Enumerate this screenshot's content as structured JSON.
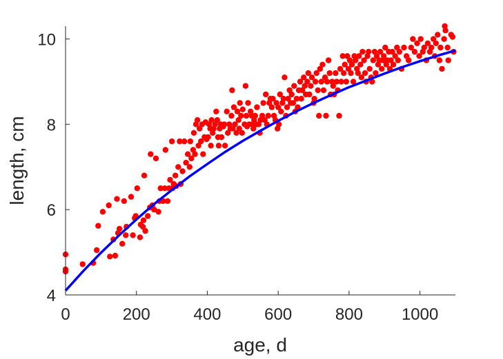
{
  "chart_data": {
    "type": "scatter",
    "xlabel": "age, d",
    "ylabel": "length, cm",
    "xlim": [
      0,
      1100
    ],
    "ylim": [
      4,
      10.3
    ],
    "xticks": [
      0,
      200,
      400,
      600,
      800,
      1000
    ],
    "yticks": [
      4,
      6,
      8,
      10
    ],
    "grid": false,
    "colors": {
      "points": "#ff0000",
      "fit": "#0000ff",
      "axes": "#262626"
    },
    "series": [
      {
        "type": "scatter",
        "points": [
          [
            0,
            4.95
          ],
          [
            0,
            4.6
          ],
          [
            0,
            4.55
          ],
          [
            48,
            4.72
          ],
          [
            78,
            4.75
          ],
          [
            88,
            5.05
          ],
          [
            92,
            5.62
          ],
          [
            105,
            5.95
          ],
          [
            122,
            6.1
          ],
          [
            125,
            4.9
          ],
          [
            135,
            5.3
          ],
          [
            140,
            4.92
          ],
          [
            145,
            6.25
          ],
          [
            148,
            5.45
          ],
          [
            152,
            5.55
          ],
          [
            160,
            5.2
          ],
          [
            165,
            6.2
          ],
          [
            170,
            5.4
          ],
          [
            172,
            5.6
          ],
          [
            185,
            6.3
          ],
          [
            190,
            5.4
          ],
          [
            195,
            5.8
          ],
          [
            198,
            5.85
          ],
          [
            202,
            6.5
          ],
          [
            210,
            5.35
          ],
          [
            212,
            5.65
          ],
          [
            218,
            5.6
          ],
          [
            220,
            5.75
          ],
          [
            222,
            6.8
          ],
          [
            225,
            5.5
          ],
          [
            232,
            5.85
          ],
          [
            238,
            6.05
          ],
          [
            240,
            7.3
          ],
          [
            245,
            6.1
          ],
          [
            250,
            6.0
          ],
          [
            255,
            7.2
          ],
          [
            262,
            5.95
          ],
          [
            265,
            6.2
          ],
          [
            268,
            6.5
          ],
          [
            275,
            6.2
          ],
          [
            280,
            6.5
          ],
          [
            282,
            7.4
          ],
          [
            288,
            6.2
          ],
          [
            292,
            6.5
          ],
          [
            295,
            6.7
          ],
          [
            300,
            7.6
          ],
          [
            302,
            6.5
          ],
          [
            305,
            6.6
          ],
          [
            310,
            6.8
          ],
          [
            312,
            6.55
          ],
          [
            318,
            7.0
          ],
          [
            322,
            7.6
          ],
          [
            325,
            6.6
          ],
          [
            330,
            6.9
          ],
          [
            335,
            7.6
          ],
          [
            340,
            7.1
          ],
          [
            345,
            7.3
          ],
          [
            350,
            7.0
          ],
          [
            352,
            7.6
          ],
          [
            355,
            7.2
          ],
          [
            360,
            7.4
          ],
          [
            362,
            7.8
          ],
          [
            365,
            7.3
          ],
          [
            368,
            8.0
          ],
          [
            372,
            8.1
          ],
          [
            375,
            7.5
          ],
          [
            378,
            7.9
          ],
          [
            382,
            7.6
          ],
          [
            385,
            8.0
          ],
          [
            388,
            7.3
          ],
          [
            392,
            7.7
          ],
          [
            395,
            8.05
          ],
          [
            398,
            7.65
          ],
          [
            402,
            7.7
          ],
          [
            405,
            8.0
          ],
          [
            408,
            7.9
          ],
          [
            410,
            7.5
          ],
          [
            412,
            8.1
          ],
          [
            415,
            7.8
          ],
          [
            418,
            7.9
          ],
          [
            422,
            8.0
          ],
          [
            425,
            8.3
          ],
          [
            428,
            8.1
          ],
          [
            430,
            7.7
          ],
          [
            432,
            7.5
          ],
          [
            435,
            7.9
          ],
          [
            438,
            8.0
          ],
          [
            440,
            7.7
          ],
          [
            445,
            7.95
          ],
          [
            448,
            8.0
          ],
          [
            450,
            7.5
          ],
          [
            455,
            8.3
          ],
          [
            458,
            7.8
          ],
          [
            462,
            8.0
          ],
          [
            465,
            7.9
          ],
          [
            468,
            8.2
          ],
          [
            470,
            8.8
          ],
          [
            472,
            7.9
          ],
          [
            475,
            8.4
          ],
          [
            478,
            8.0
          ],
          [
            482,
            7.8
          ],
          [
            485,
            8.3
          ],
          [
            488,
            8.1
          ],
          [
            490,
            7.9
          ],
          [
            492,
            8.5
          ],
          [
            495,
            8.2
          ],
          [
            498,
            7.8
          ],
          [
            500,
            8.35
          ],
          [
            505,
            8.0
          ],
          [
            508,
            8.9
          ],
          [
            510,
            8.2
          ],
          [
            512,
            7.95
          ],
          [
            515,
            8.5
          ],
          [
            518,
            8.0
          ],
          [
            522,
            8.3
          ],
          [
            525,
            8.2
          ],
          [
            528,
            8.0
          ],
          [
            530,
            7.9
          ],
          [
            532,
            8.1
          ],
          [
            535,
            8.2
          ],
          [
            538,
            8.0
          ],
          [
            540,
            8.4
          ],
          [
            545,
            8.0
          ],
          [
            548,
            7.8
          ],
          [
            550,
            8.1
          ],
          [
            555,
            8.2
          ],
          [
            558,
            8.5
          ],
          [
            562,
            8.1
          ],
          [
            565,
            8.7
          ],
          [
            568,
            8.0
          ],
          [
            572,
            8.2
          ],
          [
            575,
            8.5
          ],
          [
            578,
            8.6
          ],
          [
            582,
            8.4
          ],
          [
            585,
            8.6
          ],
          [
            588,
            8.2
          ],
          [
            592,
            8.1
          ],
          [
            595,
            8.5
          ],
          [
            598,
            7.9
          ],
          [
            600,
            8.4
          ],
          [
            602,
            8.0
          ],
          [
            605,
            8.7
          ],
          [
            608,
            8.3
          ],
          [
            612,
            8.5
          ],
          [
            615,
            8.6
          ],
          [
            618,
            9.1
          ],
          [
            622,
            8.2
          ],
          [
            625,
            8.4
          ],
          [
            628,
            8.6
          ],
          [
            632,
            8.8
          ],
          [
            635,
            8.5
          ],
          [
            638,
            8.7
          ],
          [
            642,
            8.5
          ],
          [
            645,
            8.9
          ],
          [
            648,
            8.3
          ],
          [
            652,
            8.6
          ],
          [
            655,
            8.4
          ],
          [
            658,
            8.8
          ],
          [
            662,
            9.0
          ],
          [
            665,
            8.6
          ],
          [
            668,
            8.8
          ],
          [
            672,
            9.1
          ],
          [
            675,
            8.9
          ],
          [
            678,
            8.7
          ],
          [
            682,
            9.0
          ],
          [
            685,
            9.2
          ],
          [
            688,
            8.7
          ],
          [
            692,
            8.9
          ],
          [
            695,
            9.1
          ],
          [
            700,
            8.5
          ],
          [
            702,
            8.6
          ],
          [
            705,
            9.0
          ],
          [
            708,
            9.2
          ],
          [
            712,
            8.8
          ],
          [
            715,
            8.2
          ],
          [
            718,
            9.3
          ],
          [
            722,
            9.0
          ],
          [
            725,
            9.4
          ],
          [
            728,
            8.8
          ],
          [
            732,
            9.1
          ],
          [
            735,
            8.2
          ],
          [
            738,
            9.0
          ],
          [
            742,
            9.5
          ],
          [
            745,
            9.2
          ],
          [
            748,
            8.7
          ],
          [
            752,
            9.0
          ],
          [
            755,
            8.9
          ],
          [
            758,
            8.7
          ],
          [
            762,
            9.2
          ],
          [
            765,
            9.0
          ],
          [
            768,
            8.8
          ],
          [
            772,
            8.2
          ],
          [
            775,
            9.3
          ],
          [
            778,
            9.0
          ],
          [
            782,
            9.6
          ],
          [
            785,
            9.2
          ],
          [
            788,
            9.4
          ],
          [
            792,
            9.0
          ],
          [
            795,
            9.6
          ],
          [
            798,
            9.3
          ],
          [
            802,
            9.5
          ],
          [
            805,
            9.2
          ],
          [
            808,
            9.4
          ],
          [
            812,
            9.0
          ],
          [
            815,
            9.6
          ],
          [
            818,
            9.5
          ],
          [
            822,
            9.3
          ],
          [
            825,
            9.2
          ],
          [
            828,
            9.6
          ],
          [
            832,
            9.4
          ],
          [
            835,
            9.1
          ],
          [
            838,
            9.7
          ],
          [
            842,
            9.5
          ],
          [
            845,
            9.2
          ],
          [
            848,
            9.0
          ],
          [
            852,
            9.6
          ],
          [
            855,
            9.7
          ],
          [
            858,
            9.3
          ],
          [
            862,
            9.1
          ],
          [
            865,
            9.0
          ],
          [
            868,
            9.5
          ],
          [
            872,
            9.7
          ],
          [
            875,
            9.2
          ],
          [
            878,
            9.6
          ],
          [
            882,
            9.4
          ],
          [
            885,
            9.5
          ],
          [
            888,
            9.7
          ],
          [
            892,
            9.3
          ],
          [
            895,
            9.5
          ],
          [
            898,
            9.6
          ],
          [
            902,
            9.8
          ],
          [
            905,
            9.4
          ],
          [
            908,
            9.5
          ],
          [
            912,
            9.7
          ],
          [
            915,
            9.3
          ],
          [
            918,
            9.5
          ],
          [
            922,
            9.7
          ],
          [
            925,
            9.4
          ],
          [
            930,
            9.6
          ],
          [
            935,
            9.8
          ],
          [
            938,
            9.5
          ],
          [
            942,
            9.7
          ],
          [
            948,
            9.3
          ],
          [
            955,
            9.8
          ],
          [
            962,
            9.6
          ],
          [
            968,
            9.5
          ],
          [
            975,
            9.8
          ],
          [
            980,
            10.0
          ],
          [
            985,
            9.7
          ],
          [
            992,
            9.9
          ],
          [
            998,
            9.6
          ],
          [
            1002,
            10.0
          ],
          [
            1008,
            9.7
          ],
          [
            1012,
            9.8
          ],
          [
            1018,
            9.5
          ],
          [
            1022,
            9.9
          ],
          [
            1028,
            9.7
          ],
          [
            1032,
            9.8
          ],
          [
            1038,
            10.0
          ],
          [
            1042,
            9.6
          ],
          [
            1045,
            9.9
          ],
          [
            1050,
            10.1
          ],
          [
            1055,
            9.5
          ],
          [
            1058,
            9.8
          ],
          [
            1062,
            9.3
          ],
          [
            1068,
            10.0
          ],
          [
            1070,
            10.3
          ],
          [
            1072,
            10.2
          ],
          [
            1078,
            9.8
          ],
          [
            1080,
            9.5
          ],
          [
            1088,
            10.1
          ],
          [
            1092,
            10.05
          ],
          [
            1095,
            9.7
          ]
        ]
      },
      {
        "type": "line",
        "x": [
          0,
          50,
          100,
          150,
          200,
          250,
          300,
          350,
          400,
          450,
          500,
          550,
          600,
          650,
          700,
          750,
          800,
          850,
          900,
          950,
          1000,
          1050,
          1100
        ],
        "y": [
          4.1,
          4.56,
          4.99,
          5.39,
          5.77,
          6.13,
          6.46,
          6.78,
          7.07,
          7.35,
          7.61,
          7.85,
          8.08,
          8.3,
          8.5,
          8.69,
          8.87,
          9.03,
          9.19,
          9.34,
          9.48,
          9.61,
          9.73
        ]
      }
    ]
  }
}
